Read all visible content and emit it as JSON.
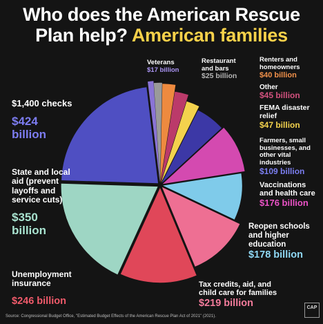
{
  "title": {
    "line1": "Who does the American Rescue",
    "line2a": "Plan help?",
    "line2b": "American families"
  },
  "source": "Source: Congressional Budget Office, \"Estimated Budget Effects of the American Rescue Plan Act of 2021\" (2021).",
  "logo": "CAP",
  "colors": {
    "background": "#141414",
    "title_highlight": "#f7d14a"
  },
  "chart_data": {
    "type": "pie",
    "unit": "billion",
    "slices": [
      {
        "name": "Veterans",
        "value": 17,
        "label": "$17 billion",
        "color": "#8a74d6",
        "value_color": "#a993f2"
      },
      {
        "name": "Restaurant and bars",
        "value": 25,
        "label": "$25 billion",
        "color": "#9a9a9a",
        "value_color": "#b5b5b5"
      },
      {
        "name": "Renters and homeowners",
        "value": 40,
        "label": "$40 billion",
        "color": "#ee8a3f",
        "value_color": "#f2914a"
      },
      {
        "name": "Other",
        "value": 45,
        "label": "$45 billion",
        "color": "#bb3a6a",
        "value_color": "#d2517e"
      },
      {
        "name": "FEMA disaster relief",
        "value": 47,
        "label": "$47 billion",
        "color": "#f3d24d",
        "value_color": "#f3d24d"
      },
      {
        "name": "Farmers, small businesses, and other vital industries",
        "value": 109,
        "label": "$109 billion",
        "color": "#3c38a6",
        "value_color": "#7b7ef0"
      },
      {
        "name": "Vaccinations and health care",
        "value": 176,
        "label": "$176 billion",
        "color": "#d44ab0",
        "value_color": "#ea52c6"
      },
      {
        "name": "Reopen schools and higher education",
        "value": 178,
        "label": "$178 billion",
        "color": "#7fcbea",
        "value_color": "#8fd8f5"
      },
      {
        "name": "Tax credits, aid, and child care for families",
        "value": 219,
        "label": "$219 billion",
        "color": "#ee6f93",
        "value_color": "#f47c9c"
      },
      {
        "name": "Unemployment insurance",
        "value": 246,
        "label": "$246 billion",
        "color": "#e04759",
        "value_color": "#ef5a6a"
      },
      {
        "name": "State and local aid (prevent layoffs and service cuts)",
        "value": 350,
        "label": "$350 billion",
        "color": "#9ed6c4",
        "value_color": "#a8e2cf"
      },
      {
        "name": "$1,400 checks",
        "value": 424,
        "label": "$424 billion",
        "color": "#4f4fc2",
        "value_color": "#7c7cf0"
      }
    ]
  }
}
